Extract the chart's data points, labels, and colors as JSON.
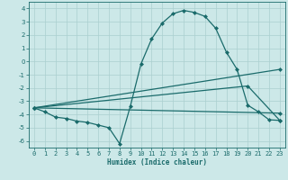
{
  "xlabel": "Humidex (Indice chaleur)",
  "ylabel": "",
  "bg_color": "#cce8e8",
  "grid_color": "#aacfcf",
  "line_color": "#1a6b6b",
  "xlim": [
    -0.5,
    23.5
  ],
  "ylim": [
    -6.5,
    4.5
  ],
  "xticks": [
    0,
    1,
    2,
    3,
    4,
    5,
    6,
    7,
    8,
    9,
    10,
    11,
    12,
    13,
    14,
    15,
    16,
    17,
    18,
    19,
    20,
    21,
    22,
    23
  ],
  "yticks": [
    -6,
    -5,
    -4,
    -3,
    -2,
    -1,
    0,
    1,
    2,
    3,
    4
  ],
  "curve1_x": [
    0,
    1,
    2,
    3,
    4,
    5,
    6,
    7,
    8,
    9,
    10,
    11,
    12,
    13,
    14,
    15,
    16,
    17,
    18,
    19,
    20,
    21,
    22,
    23
  ],
  "curve1_y": [
    -3.5,
    -3.8,
    -4.2,
    -4.3,
    -4.5,
    -4.6,
    -4.8,
    -5.0,
    -6.2,
    -3.4,
    -0.2,
    1.7,
    2.9,
    3.6,
    3.85,
    3.7,
    3.4,
    2.5,
    0.7,
    -0.6,
    -3.3,
    -3.8,
    -4.4,
    -4.45
  ],
  "curve2_x": [
    0,
    23
  ],
  "curve2_y": [
    -3.5,
    -3.9
  ],
  "curve3_x": [
    0,
    20,
    23
  ],
  "curve3_y": [
    -3.5,
    -1.85,
    -4.45
  ],
  "curve4_x": [
    0,
    23
  ],
  "curve4_y": [
    -3.5,
    -0.6
  ],
  "marker": "D",
  "marker_size": 2,
  "line_width": 0.9,
  "font_color": "#1a6b6b",
  "xlabel_fontsize": 5.5,
  "tick_fontsize": 5.0
}
